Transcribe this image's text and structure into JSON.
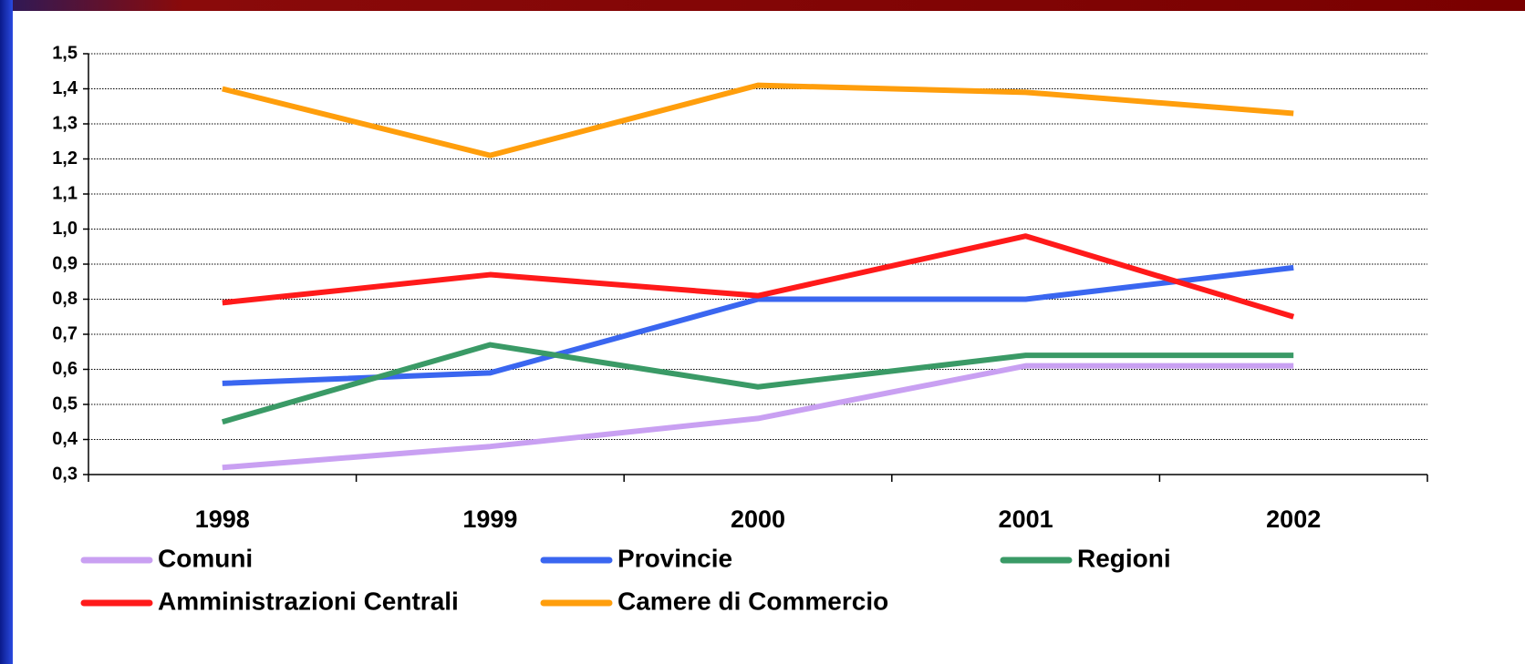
{
  "chart_data": {
    "type": "line",
    "categories": [
      "1998",
      "1999",
      "2000",
      "2001",
      "2002"
    ],
    "series": [
      {
        "name": "Comuni",
        "color": "#c9a0f2",
        "values": [
          0.32,
          0.38,
          0.46,
          0.61,
          0.61
        ]
      },
      {
        "name": "Provincie",
        "color": "#3a66f0",
        "values": [
          0.56,
          0.59,
          0.8,
          0.8,
          0.89
        ]
      },
      {
        "name": "Regioni",
        "color": "#3a9a66",
        "values": [
          0.45,
          0.67,
          0.55,
          0.64,
          0.64
        ]
      },
      {
        "name": "Amministrazioni Centrali",
        "color": "#ff1a1a",
        "values": [
          0.79,
          0.87,
          0.81,
          0.98,
          0.75
        ]
      },
      {
        "name": "Camere di Commercio",
        "color": "#ff9e0c",
        "values": [
          1.4,
          1.21,
          1.41,
          1.39,
          1.33
        ]
      }
    ],
    "ylim": [
      0.3,
      1.5
    ],
    "yticks": [
      {
        "value": 0.3,
        "label": "0,3"
      },
      {
        "value": 0.4,
        "label": "0,4"
      },
      {
        "value": 0.5,
        "label": "0,5"
      },
      {
        "value": 0.6,
        "label": "0,6"
      },
      {
        "value": 0.7,
        "label": "0,7"
      },
      {
        "value": 0.8,
        "label": "0,8"
      },
      {
        "value": 0.9,
        "label": "0,9"
      },
      {
        "value": 1.0,
        "label": "1,0"
      },
      {
        "value": 1.1,
        "label": "1,1"
      },
      {
        "value": 1.2,
        "label": "1,2"
      },
      {
        "value": 1.3,
        "label": "1,3"
      },
      {
        "value": 1.4,
        "label": "1,4"
      },
      {
        "value": 1.5,
        "label": "1,5"
      }
    ],
    "grid": true
  }
}
